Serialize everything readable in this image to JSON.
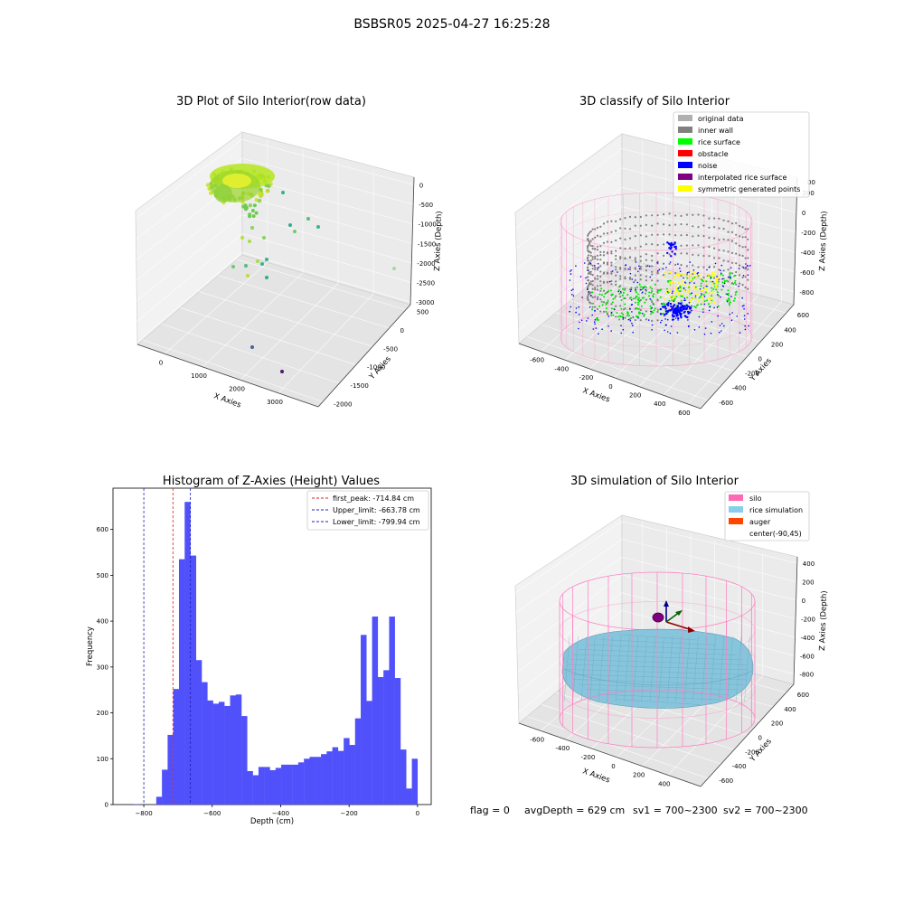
{
  "figure": {
    "suptitle": "BSBSR05 2025-04-27 16:25:28",
    "footer": {
      "flag": "flag = 0",
      "avg_depth": "avgDepth = 629 cm",
      "sv1": "sv1 = 700~2300",
      "sv2": "sv2 = 700~2300"
    }
  },
  "colors": {
    "histogram_bar": "#5151fb",
    "first_peak_line": "#e02020",
    "limit_lines": "#2020c0",
    "silo_wire": "#ff69b4",
    "rice_surface": "#00ff00",
    "inner_wall": "#808080",
    "noise": "#0000ff",
    "rice_simulation": "#87ceeb",
    "auger": "#ff4500"
  },
  "chart_data": [
    {
      "type": "scatter",
      "subtype": "3d",
      "title": "3D Plot of Silo Interior(row data)",
      "xlabel": "X Axies",
      "ylabel": "Y Axies",
      "zlabel": "Z Axies (Depth)",
      "x_ticks": [
        "0",
        "1000",
        "2000",
        "3000"
      ],
      "y_ticks": [
        "500",
        "0",
        "-500",
        "-1000",
        "-1500",
        "-2000"
      ],
      "z_ticks": [
        "0",
        "-500",
        "-1000",
        "-1500",
        "-2000",
        "-2500",
        "-3000"
      ],
      "outliers": [
        {
          "x": 300,
          "y": 0,
          "z": -1700
        },
        {
          "x": 400,
          "y": -100,
          "z": -1800
        },
        {
          "x": 600,
          "y": 200,
          "z": -1500
        },
        {
          "x": 800,
          "y": 100,
          "z": -1100
        },
        {
          "x": 1000,
          "y": -200,
          "z": -900
        },
        {
          "x": 1500,
          "y": 300,
          "z": -1300
        },
        {
          "x": 2600,
          "y": -1600,
          "z": -2100
        },
        {
          "x": 1200,
          "y": -1800,
          "z": -2900
        },
        {
          "x": 2600,
          "y": -1900,
          "z": -3000
        }
      ]
    },
    {
      "type": "scatter",
      "subtype": "3d",
      "title": "3D classify of Silo Interior",
      "xlabel": "X Axies",
      "ylabel": "Y Axies",
      "zlabel": "Z Axies (Depth)",
      "x_ticks": [
        "-600",
        "-400",
        "-200",
        "0",
        "200",
        "400",
        "600"
      ],
      "y_ticks": [
        "600",
        "400",
        "200",
        "0",
        "-200",
        "-400",
        "-600"
      ],
      "z_ticks": [
        "200",
        "0",
        "-200",
        "-400",
        "-600",
        "-800"
      ],
      "z_partial_tick": "00",
      "legend": [
        {
          "label": "original data",
          "color": "#b0b0b0"
        },
        {
          "label": "inner wall",
          "color": "#808080"
        },
        {
          "label": "rice surface",
          "color": "#00ff00"
        },
        {
          "label": "obstacle",
          "color": "#ff0000"
        },
        {
          "label": "noise",
          "color": "#0000ff"
        },
        {
          "label": "interpolated rice surface",
          "color": "#800080"
        },
        {
          "label": "symmetric generated points",
          "color": "#ffff00"
        }
      ]
    },
    {
      "type": "bar",
      "subtype": "histogram",
      "title": "Histogram of Z-Axies (Height) Values",
      "xlabel": "Depth (cm)",
      "ylabel": "Frequency",
      "xlim": [
        -890,
        40
      ],
      "ylim": [
        0,
        690
      ],
      "x_ticks": [
        -800,
        -600,
        -400,
        -200,
        0
      ],
      "y_ticks": [
        0,
        100,
        200,
        300,
        400,
        500,
        600
      ],
      "bin_start": -830,
      "bin_width": 16.6,
      "counts": [
        1,
        0,
        0,
        0,
        17,
        76,
        152,
        252,
        535,
        660,
        543,
        315,
        267,
        227,
        220,
        224,
        215,
        238,
        240,
        193,
        73,
        64,
        82,
        82,
        75,
        80,
        87,
        87,
        87,
        92,
        100,
        104,
        104,
        110,
        116,
        125,
        117,
        145,
        130,
        188,
        370,
        226,
        410,
        278,
        293,
        410,
        276,
        120,
        35,
        100
      ],
      "legend": [
        {
          "label": "first_peak: -714.84 cm",
          "value": -714.84,
          "style": "red"
        },
        {
          "label": "Upper_limit: -663.78 cm",
          "value": -663.78,
          "style": "blue"
        },
        {
          "label": "Lower_limit: -799.94 cm",
          "value": -799.94,
          "style": "blue"
        }
      ]
    },
    {
      "type": "area",
      "subtype": "3d-surface",
      "title": "3D simulation of Silo Interior",
      "xlabel": "X Axies",
      "ylabel": "Y Axies",
      "zlabel": "Z Axies (Depth)",
      "x_ticks": [
        "-600",
        "-400",
        "-200",
        "0",
        "200",
        "400"
      ],
      "y_ticks": [
        "600",
        "400",
        "200",
        "0",
        "-200",
        "-400",
        "-600"
      ],
      "z_ticks": [
        "400",
        "200",
        "0",
        "-200",
        "-400",
        "-600",
        "-800"
      ],
      "legend": [
        {
          "label": "silo",
          "color": "#ff69b4"
        },
        {
          "label": "rice simulation",
          "color": "#87ceeb"
        },
        {
          "label": "auger",
          "color": "#ff4500"
        },
        {
          "label": "center(-90,45)",
          "color": ""
        }
      ]
    }
  ]
}
